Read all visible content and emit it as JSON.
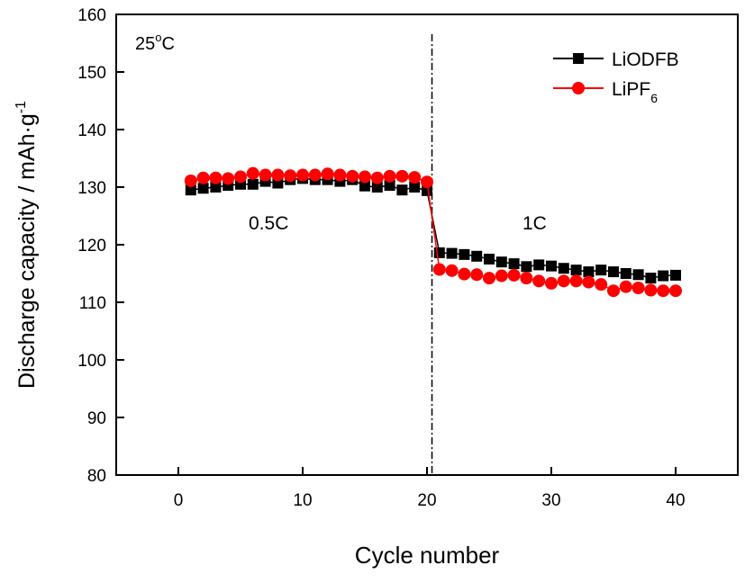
{
  "chart_data": {
    "type": "line",
    "title": "",
    "xlabel": "Cycle number",
    "ylabel": "Discharge capacity / mAh·g",
    "ylabel_superscript": "-1",
    "xlim": [
      -5,
      45
    ],
    "ylim": [
      80,
      160
    ],
    "xticks": [
      0,
      10,
      20,
      30,
      40
    ],
    "yticks": [
      80,
      90,
      100,
      110,
      120,
      130,
      140,
      150,
      160
    ],
    "grid": false,
    "legend_position": "top-right",
    "divider_x": 20.4,
    "annotations": {
      "temperature": "25",
      "temperature_unit": "o",
      "temperature_suffix": "C",
      "rate_low": "0.5C",
      "rate_high": "1C"
    },
    "x": [
      1,
      2,
      3,
      4,
      5,
      6,
      7,
      8,
      9,
      10,
      11,
      12,
      13,
      14,
      15,
      16,
      17,
      18,
      19,
      20,
      21,
      22,
      23,
      24,
      25,
      26,
      27,
      28,
      29,
      30,
      31,
      32,
      33,
      34,
      35,
      36,
      37,
      38,
      39,
      40
    ],
    "series": [
      {
        "name": "LiODFB",
        "name_subscript": "",
        "color": "#000000",
        "marker": "square",
        "values": [
          129.5,
          129.8,
          130.0,
          130.3,
          130.5,
          130.5,
          131.0,
          130.7,
          131.3,
          131.5,
          131.3,
          131.3,
          131.0,
          131.3,
          130.2,
          130.0,
          130.3,
          129.5,
          130.0,
          129.4,
          118.6,
          118.5,
          118.3,
          118.0,
          117.5,
          117.0,
          116.7,
          116.2,
          116.5,
          116.3,
          115.9,
          115.6,
          115.3,
          115.6,
          115.3,
          115.0,
          114.8,
          114.2,
          114.6,
          114.7
        ]
      },
      {
        "name": "LiPF",
        "name_subscript": "6",
        "color": "#ff0000",
        "marker": "circle",
        "values": [
          131.1,
          131.6,
          131.6,
          131.5,
          131.8,
          132.4,
          132.1,
          132.1,
          132.0,
          132.1,
          132.1,
          132.3,
          132.1,
          131.9,
          131.8,
          131.6,
          131.9,
          131.9,
          131.7,
          130.9,
          115.7,
          115.5,
          114.9,
          114.8,
          114.2,
          114.6,
          114.7,
          114.2,
          113.7,
          113.3,
          113.7,
          113.7,
          113.5,
          113.1,
          112.0,
          112.7,
          112.5,
          112.1,
          112.0,
          112.0
        ]
      }
    ]
  }
}
